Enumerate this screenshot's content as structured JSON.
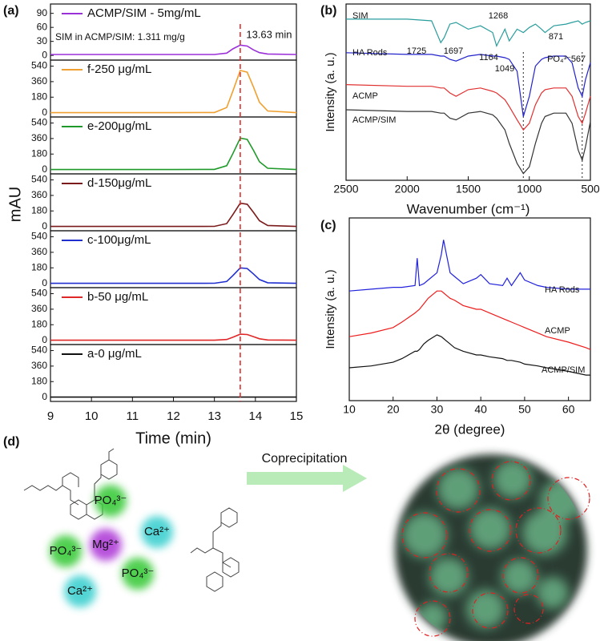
{
  "panel_labels": [
    "(a)",
    "(b)",
    "(c)",
    "(d)"
  ],
  "chart_data": [
    {
      "type": "stacked-line",
      "xlabel": "Time (min)",
      "ylabel": "mAU",
      "xlim": [
        9,
        15
      ],
      "xticks": [
        9,
        10,
        11,
        12,
        13,
        14,
        15
      ],
      "x": [
        9,
        12,
        13,
        13.3,
        13.45,
        13.63,
        13.8,
        13.95,
        14.1,
        14.3,
        15
      ],
      "marker_x": 13.63,
      "marker_label": "13.63 min",
      "marker_color": "#e03030",
      "note": "SIM in ACMP/SIM: 1.311 mg/g",
      "panels": [
        {
          "name": "ACMP/SIM - 5mg/mL",
          "color": "#9b30d9",
          "ylim": [
            -10,
            110
          ],
          "yticks": [
            0,
            30,
            60,
            90
          ],
          "values": [
            2,
            2,
            2,
            5,
            14,
            22,
            20,
            12,
            6,
            3,
            2
          ]
        },
        {
          "name": "f-250 μg/mL",
          "color": "#f0a030",
          "ylim": [
            -50,
            610
          ],
          "yticks": [
            0,
            180,
            360,
            540
          ],
          "values": [
            0,
            0,
            2,
            60,
            250,
            490,
            470,
            300,
            120,
            20,
            0
          ]
        },
        {
          "name": "e-200μg/mL",
          "color": "#1f9a2a",
          "ylim": [
            -50,
            610
          ],
          "yticks": [
            0,
            180,
            360,
            540
          ],
          "values": [
            0,
            0,
            2,
            45,
            185,
            365,
            350,
            225,
            90,
            15,
            0
          ]
        },
        {
          "name": "d-150μg/mL",
          "color": "#7a1a1a",
          "ylim": [
            -50,
            610
          ],
          "yticks": [
            0,
            180,
            360,
            540
          ],
          "values": [
            0,
            0,
            1,
            33,
            138,
            270,
            258,
            165,
            66,
            11,
            0
          ]
        },
        {
          "name": "c-100μg/mL",
          "color": "#2030d0",
          "ylim": [
            -50,
            610
          ],
          "yticks": [
            0,
            180,
            360,
            540
          ],
          "values": [
            0,
            0,
            1,
            22,
            90,
            180,
            172,
            110,
            44,
            7,
            0
          ]
        },
        {
          "name": "b-50 μg/mL",
          "color": "#e02828",
          "ylim": [
            -50,
            610
          ],
          "yticks": [
            0,
            180,
            360,
            540
          ],
          "values": [
            0,
            0,
            0,
            9,
            35,
            70,
            66,
            42,
            17,
            3,
            0
          ]
        },
        {
          "name": "a-0 μg/mL",
          "color": "#111111",
          "ylim": [
            -50,
            610
          ],
          "yticks": [
            0,
            180,
            360,
            540
          ],
          "values": [
            0,
            0,
            0,
            0,
            0,
            0,
            0,
            0,
            0,
            0,
            0
          ]
        }
      ]
    },
    {
      "type": "line",
      "xlabel": "Wavenumber (cm⁻¹)",
      "ylabel": "Intensity (a. u.)",
      "xlim": [
        2500,
        500
      ],
      "xticks": [
        2500,
        2000,
        1500,
        1000,
        500
      ],
      "ylim": [
        0,
        105
      ],
      "markers_x": [
        1049,
        567
      ],
      "annotations": [
        "1725",
        "1697",
        "1268",
        "1164",
        "871",
        "1049",
        "PO₄³⁻",
        "567"
      ],
      "x": [
        2500,
        2000,
        1800,
        1725,
        1697,
        1650,
        1600,
        1500,
        1400,
        1300,
        1268,
        1200,
        1164,
        1100,
        1049,
        1000,
        950,
        900,
        871,
        800,
        700,
        650,
        600,
        567,
        540,
        500
      ],
      "series": [
        {
          "name": "SIM",
          "color": "#2a9d9d",
          "values": [
            96,
            96,
            95,
            82,
            85,
            93,
            94,
            90,
            92,
            88,
            80,
            90,
            83,
            90,
            88,
            91,
            93,
            90,
            88,
            92,
            93,
            94,
            95,
            93,
            94,
            95
          ]
        },
        {
          "name": "HA Rods",
          "color": "#2222cc",
          "values": [
            76,
            75,
            75,
            74,
            74,
            72,
            71,
            74,
            75,
            74,
            74,
            73,
            72,
            65,
            38,
            50,
            68,
            72,
            73,
            74,
            74,
            70,
            55,
            50,
            60,
            70
          ]
        },
        {
          "name": "ACMP",
          "color": "#e03030",
          "values": [
            57,
            56,
            56,
            55,
            55,
            52,
            50,
            54,
            55,
            53,
            52,
            48,
            44,
            36,
            30,
            34,
            45,
            52,
            54,
            55,
            55,
            50,
            38,
            34,
            40,
            50
          ]
        },
        {
          "name": "ACMP/SIM",
          "color": "#333333",
          "values": [
            42,
            41,
            41,
            40,
            40,
            37,
            36,
            40,
            41,
            39,
            37,
            30,
            22,
            10,
            4,
            8,
            22,
            34,
            38,
            40,
            40,
            34,
            18,
            12,
            20,
            35
          ]
        }
      ]
    },
    {
      "type": "line",
      "xlabel": "2θ (degree)",
      "ylabel": "Intensity (a. u.)",
      "xlim": [
        10,
        65
      ],
      "xticks": [
        10,
        20,
        30,
        40,
        50,
        60
      ],
      "ylim": [
        0,
        100
      ],
      "x": [
        10,
        15,
        20,
        22,
        25,
        25.5,
        26,
        27,
        28,
        30,
        31,
        31.5,
        32,
        33,
        34,
        36,
        39,
        40,
        42,
        45,
        46,
        47,
        49,
        50,
        53,
        55,
        60,
        64,
        65
      ],
      "series": [
        {
          "name": "HA Rods",
          "color": "#2222dd",
          "values": [
            60,
            61,
            62,
            62,
            63,
            78,
            63,
            64,
            66,
            70,
            80,
            88,
            82,
            70,
            68,
            64,
            67,
            69,
            64,
            63,
            67,
            63,
            70,
            66,
            63,
            62,
            61,
            61,
            61
          ]
        },
        {
          "name": "ACMP",
          "color": "#ee1c1c",
          "values": [
            35,
            37,
            40,
            43,
            48,
            49,
            50,
            53,
            56,
            60,
            60,
            59,
            58,
            56,
            55,
            52,
            50,
            50,
            48,
            45,
            44,
            43,
            41,
            40,
            37,
            35,
            32,
            29,
            28
          ]
        },
        {
          "name": "ACMP/SIM",
          "color": "#111111",
          "values": [
            18,
            19,
            21,
            23,
            27,
            27,
            28,
            31,
            33,
            36,
            35,
            34,
            33,
            31,
            29,
            27,
            25,
            25,
            24,
            23,
            22,
            22,
            21,
            20,
            19,
            18,
            16,
            14,
            14
          ]
        }
      ]
    }
  ],
  "diagram": {
    "ions": [
      {
        "label": "PO₄³⁻",
        "color": "#3ecb3e"
      },
      {
        "label": "PO₄³⁻",
        "color": "#3ecb3e"
      },
      {
        "label": "Mg²⁺",
        "color": "#b040d8"
      },
      {
        "label": "Ca²⁺",
        "color": "#3fd0d0"
      },
      {
        "label": "PO₄³⁻",
        "color": "#3ecb3e"
      },
      {
        "label": "Ca²⁺",
        "color": "#3fd0d0"
      }
    ],
    "arrow_label": "Coprecipitation"
  }
}
